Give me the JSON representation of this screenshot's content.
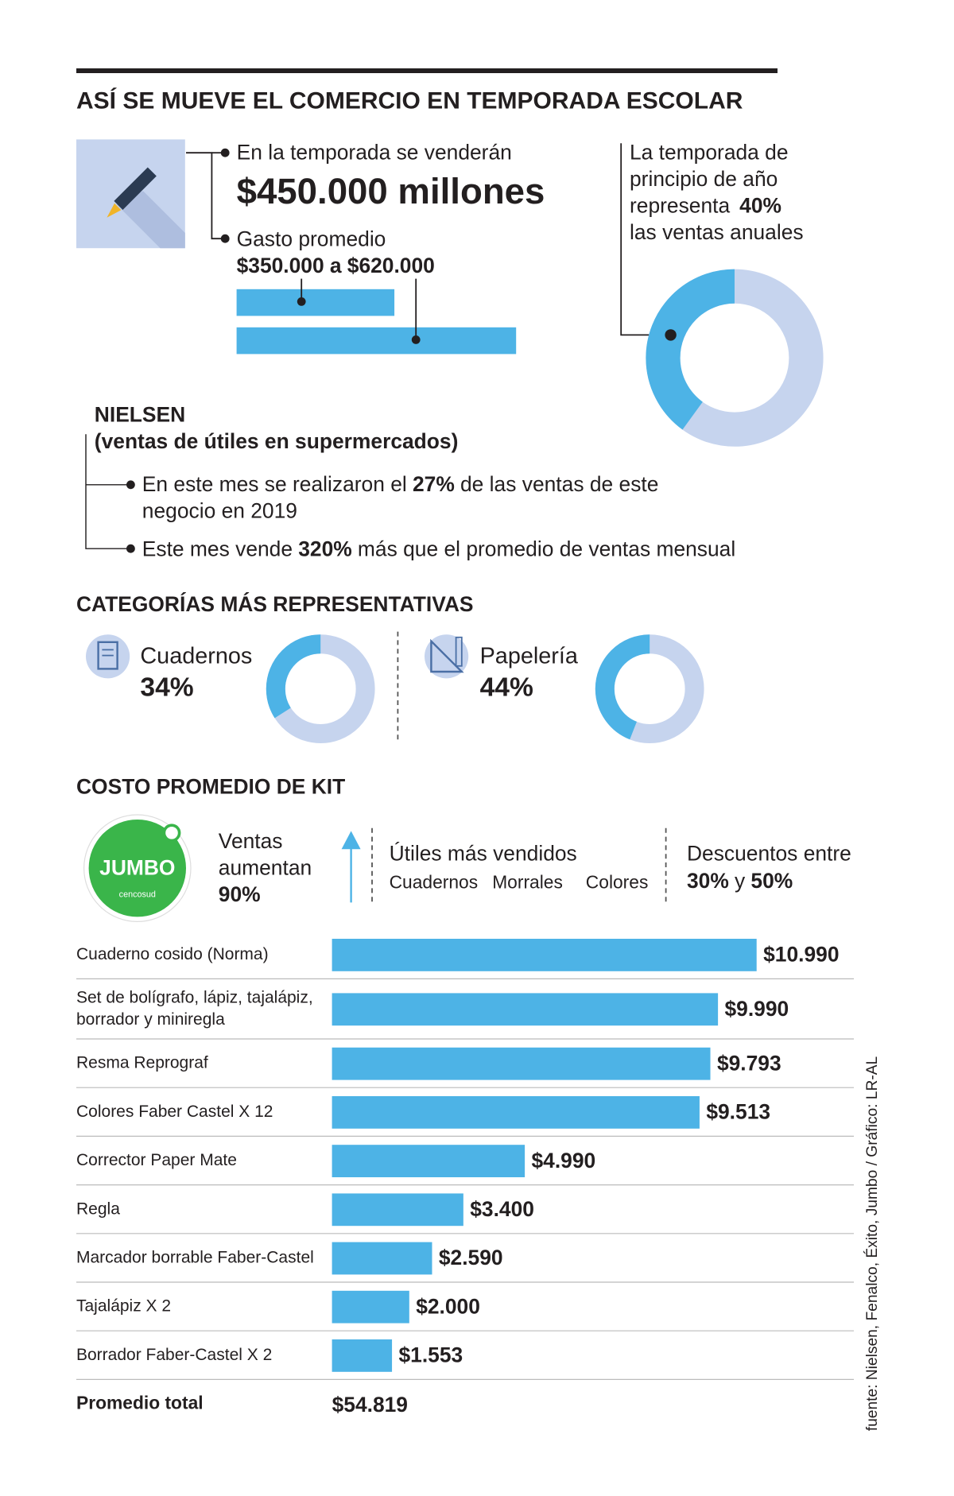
{
  "header": {
    "title": "ASÍ SE MUEVE EL COMERCIO EN TEMPORADA ESCOLAR"
  },
  "season": {
    "text": "En la temporada se venderán",
    "amount": "$450.000 millones"
  },
  "nielsen": {
    "title": "NIELSEN",
    "subtitle": "(ventas de útiles en supermercados)",
    "bullet1": {
      "pre": "En este mes se realizaron el",
      "bold": "27%",
      "post": "de las ventas de este",
      "line2": "negocio en 2019"
    },
    "bullet2": {
      "pre": "Este mes vende",
      "bold": "320%",
      "post": "más que el promedio de ventas mensual"
    }
  },
  "categories_title": "CATEGORÍAS MÁS REPRESENTATIVAS",
  "kit_title": "COSTO PROMEDIO DE KIT",
  "jumbo": {
    "logo": "JUMBO",
    "logo_sub": "cencosud",
    "sales_lines": [
      "Ventas",
      "aumentan"
    ],
    "sales_value": "90%",
    "top_title": "Útiles más vendidos",
    "top_items": [
      "Cuadernos",
      "Morrales",
      "Colores"
    ],
    "discount_title": "Descuentos entre",
    "discount_low": "30%",
    "discount_joiner": "y",
    "discount_high": "50%"
  },
  "kit_total": {
    "label": "Promedio total",
    "value": "$54.819"
  },
  "source": "fuente: Nielsen, Fenalco, Éxito, Jumbo / Gráfico: LR-AL",
  "chart_data": [
    {
      "type": "range-bar",
      "title": "Gasto promedio",
      "values": [
        350000,
        620000
      ],
      "value_labels": [
        "$350.000",
        "$620.000"
      ],
      "connector": "a",
      "color": "#4db3e6",
      "xlim": [
        0,
        620000
      ]
    },
    {
      "type": "donut",
      "text_lines": [
        "La temporada de",
        "principio de año",
        "representa"
      ],
      "values": [
        40
      ],
      "value_labels": [
        "40%"
      ],
      "text_after": "las ventas anuales",
      "color": "#4db3e6",
      "track_color": "#c6d4ee",
      "ylim": [
        0,
        100
      ]
    },
    {
      "type": "donut",
      "label": "Cuadernos",
      "values": [
        34
      ],
      "value_labels": [
        "34%"
      ],
      "color": "#4db3e6",
      "track_color": "#c6d4ee",
      "ylim": [
        0,
        100
      ]
    },
    {
      "type": "donut",
      "label": "Papelería",
      "values": [
        44
      ],
      "value_labels": [
        "44%"
      ],
      "color": "#4db3e6",
      "track_color": "#c6d4ee",
      "ylim": [
        0,
        100
      ]
    },
    {
      "type": "bar",
      "orientation": "horizontal",
      "categories": [
        "Cuaderno cosido (Norma)",
        "Set de bolígrafo, lápiz, tajalápiz, borrador y miniregla",
        "Resma Reprograf",
        "Colores Faber Castel X 12",
        "Corrector Paper Mate",
        "Regla",
        "Marcador borrable Faber-Castel",
        "Tajalápiz X 2",
        "Borrador Faber-Castel X 2"
      ],
      "values": [
        10990,
        9990,
        9793,
        9513,
        4990,
        3400,
        2590,
        2000,
        1553
      ],
      "value_labels": [
        "$10.990",
        "$9.990",
        "$9.793",
        "$9.513",
        "$4.990",
        "$3.400",
        "$2.590",
        "$2.000",
        "$1.553"
      ],
      "color": "#4db3e6",
      "xlim": [
        0,
        12000
      ]
    }
  ]
}
